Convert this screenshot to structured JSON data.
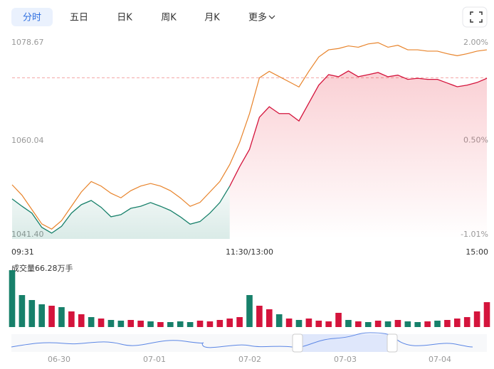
{
  "tabs": [
    "分时",
    "五日",
    "日K",
    "周K",
    "月K",
    "更多"
  ],
  "chart_data": {
    "type": "line",
    "categories": [
      "09:31",
      null,
      null,
      null,
      null,
      null,
      null,
      null,
      null,
      null,
      null,
      null,
      null,
      null,
      null,
      null,
      null,
      null,
      null,
      null,
      null,
      null,
      null,
      null,
      "11:30/13:00",
      null,
      null,
      null,
      null,
      null,
      null,
      null,
      null,
      null,
      null,
      null,
      null,
      null,
      null,
      null,
      null,
      null,
      null,
      null,
      null,
      null,
      null,
      null,
      "15:00"
    ],
    "ylim": [
      1041.4,
      1078.67
    ],
    "yticks": [
      {
        "value": 1041.4,
        "label": "1041.40"
      },
      1060.04,
      1078.67
    ],
    "y2lim": [
      -1.01,
      2.0
    ],
    "y2ticks": [
      {
        "value": -1.01,
        "label": "-1.01%"
      },
      {
        "value": 0.5,
        "label": "0.50%"
      },
      {
        "value": 2.0,
        "label": "2.00%"
      }
    ],
    "reference": 1072,
    "base": 1054,
    "series": [
      {
        "color": "#d4143c",
        "down_color": "#17806a",
        "values": [
          1049.0,
          1047.6,
          1046.3,
          1043.6,
          1042.5,
          1043.8,
          1046.3,
          1047.9,
          1048.7,
          1047.4,
          1045.6,
          1046.0,
          1047.2,
          1047.6,
          1048.3,
          1047.6,
          1046.8,
          1045.6,
          1044.2,
          1044.7,
          1046.3,
          1048.3,
          1051.4,
          1055.1,
          1058.4,
          1064.5,
          1066.5,
          1065.2,
          1065.2,
          1063.8,
          1067.2,
          1070.6,
          1072.6,
          1072.2,
          1073.3,
          1072.2,
          1072.6,
          1073.0,
          1072.2,
          1072.5,
          1071.7,
          1071.9,
          1071.7,
          1071.7,
          1071.0,
          1070.3,
          1070.6,
          1071.1,
          1071.9
        ]
      },
      {
        "color": "#e8832a",
        "axis": "y2",
        "values": [
          -0.18,
          -0.34,
          -0.56,
          -0.78,
          -0.86,
          -0.73,
          -0.51,
          -0.29,
          -0.13,
          -0.2,
          -0.31,
          -0.38,
          -0.27,
          -0.2,
          -0.16,
          -0.2,
          -0.27,
          -0.38,
          -0.51,
          -0.45,
          -0.29,
          -0.13,
          0.13,
          0.47,
          0.91,
          1.46,
          1.56,
          1.48,
          1.4,
          1.32,
          1.56,
          1.78,
          1.89,
          1.91,
          1.95,
          1.93,
          1.98,
          2.0,
          1.93,
          1.96,
          1.89,
          1.89,
          1.87,
          1.87,
          1.83,
          1.8,
          1.83,
          1.87,
          1.89
        ]
      }
    ],
    "volume_label": "成交量66.28万手",
    "volume": {
      "max": 80,
      "values": [
        80,
        45,
        38,
        32,
        30,
        28,
        22,
        18,
        14,
        12,
        10,
        9,
        10,
        9,
        8,
        7,
        7,
        8,
        7,
        9,
        8,
        10,
        12,
        14,
        45,
        30,
        25,
        18,
        12,
        10,
        12,
        9,
        8,
        20,
        10,
        8,
        7,
        9,
        8,
        10,
        8,
        7,
        8,
        9,
        10,
        12,
        14,
        22,
        35
      ],
      "colors": [
        "#17806a",
        "#17806a",
        "#17806a",
        "#17806a",
        "#d4143c",
        "#17806a",
        "#d4143c",
        "#d4143c",
        "#17806a",
        "#d4143c",
        "#17806a",
        "#17806a",
        "#d4143c",
        "#d4143c",
        "#17806a",
        "#d4143c",
        "#17806a",
        "#17806a",
        "#17806a",
        "#d4143c",
        "#d4143c",
        "#d4143c",
        "#d4143c",
        "#d4143c",
        "#17806a",
        "#d4143c",
        "#d4143c",
        "#17806a",
        "#d4143c",
        "#17806a",
        "#d4143c",
        "#d4143c",
        "#d4143c",
        "#d4143c",
        "#17806a",
        "#d4143c",
        "#17806a",
        "#d4143c",
        "#17806a",
        "#d4143c",
        "#17806a",
        "#17806a",
        "#d4143c",
        "#17806a",
        "#d4143c",
        "#d4143c",
        "#d4143c",
        "#d4143c",
        "#d4143c"
      ]
    }
  },
  "navigator": {
    "dates": [
      "06-30",
      "07-01",
      "07-02",
      "07-03",
      "07-04"
    ]
  }
}
